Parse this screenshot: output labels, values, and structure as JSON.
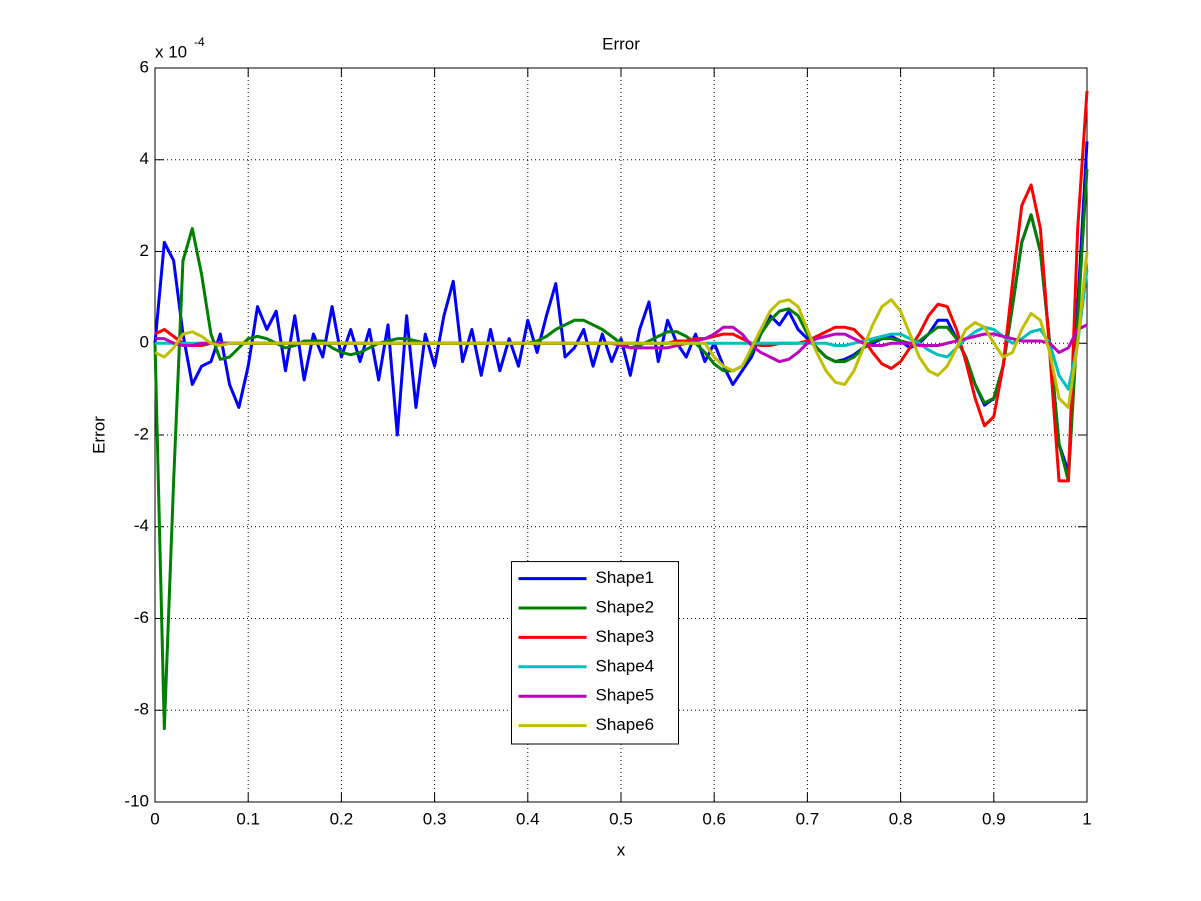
{
  "chart_data": {
    "type": "line",
    "title": "Error",
    "xlabel": "x",
    "ylabel": "Error",
    "y_multiplier": "x 10",
    "y_multiplier_exponent": "-4",
    "xlim": [
      0,
      1
    ],
    "ylim": [
      -10,
      6
    ],
    "xticks": [
      0,
      0.1,
      0.2,
      0.3,
      0.4,
      0.5,
      0.6,
      0.7,
      0.8,
      0.9,
      1
    ],
    "yticks": [
      -10,
      -8,
      -6,
      -4,
      -2,
      0,
      2,
      4,
      6
    ],
    "grid": true,
    "legend_location": "south",
    "x": [
      0,
      0.01,
      0.02,
      0.03,
      0.04,
      0.05,
      0.06,
      0.07,
      0.08,
      0.09,
      0.1,
      0.11,
      0.12,
      0.13,
      0.14,
      0.15,
      0.16,
      0.17,
      0.18,
      0.19,
      0.2,
      0.21,
      0.22,
      0.23,
      0.24,
      0.25,
      0.26,
      0.27,
      0.28,
      0.29,
      0.3,
      0.31,
      0.32,
      0.33,
      0.34,
      0.35,
      0.36,
      0.37,
      0.38,
      0.39,
      0.4,
      0.41,
      0.42,
      0.43,
      0.44,
      0.45,
      0.46,
      0.47,
      0.48,
      0.49,
      0.5,
      0.51,
      0.52,
      0.53,
      0.54,
      0.55,
      0.56,
      0.57,
      0.58,
      0.59,
      0.6,
      0.61,
      0.62,
      0.63,
      0.64,
      0.65,
      0.66,
      0.67,
      0.68,
      0.69,
      0.7,
      0.71,
      0.72,
      0.73,
      0.74,
      0.75,
      0.76,
      0.77,
      0.78,
      0.79,
      0.8,
      0.81,
      0.82,
      0.83,
      0.84,
      0.85,
      0.86,
      0.87,
      0.88,
      0.89,
      0.9,
      0.91,
      0.92,
      0.93,
      0.94,
      0.95,
      0.96,
      0.97,
      0.98,
      0.99,
      1
    ],
    "series": [
      {
        "name": "Shape1",
        "color": "#0000ff",
        "values": [
          0,
          2.2,
          1.8,
          0.2,
          -0.9,
          -0.5,
          -0.4,
          0.2,
          -0.9,
          -1.4,
          -0.5,
          0.8,
          0.3,
          0.7,
          -0.6,
          0.6,
          -0.8,
          0.2,
          -0.3,
          0.8,
          -0.3,
          0.3,
          -0.4,
          0.3,
          -0.8,
          0.4,
          -2.0,
          0.6,
          -1.4,
          0.2,
          -0.5,
          0.6,
          1.35,
          -0.4,
          0.3,
          -0.7,
          0.3,
          -0.6,
          0.1,
          -0.5,
          0.5,
          -0.2,
          0.6,
          1.3,
          -0.3,
          -0.1,
          0.3,
          -0.5,
          0.2,
          -0.4,
          0.1,
          -0.7,
          0.3,
          0.9,
          -0.4,
          0.5,
          0,
          -0.3,
          0.2,
          -0.4,
          0,
          -0.5,
          -0.9,
          -0.6,
          -0.3,
          0.2,
          0.6,
          0.4,
          0.7,
          0.3,
          0.1,
          -0.1,
          -0.3,
          -0.4,
          -0.35,
          -0.25,
          -0.1,
          0,
          0.1,
          0.15,
          0.05,
          -0.1,
          0,
          0.2,
          0.5,
          0.5,
          0.1,
          -0.3,
          -0.9,
          -1.35,
          -1.2,
          -0.5,
          0.8,
          2.2,
          2.8,
          2.0,
          0,
          -2.2,
          -2.8,
          0.8,
          4.4
        ]
      },
      {
        "name": "Shape2",
        "color": "#008000",
        "values": [
          0,
          -8.4,
          -3,
          1.8,
          2.5,
          1.5,
          0.2,
          -0.35,
          -0.3,
          -0.1,
          0.1,
          0.15,
          0.1,
          0,
          -0.1,
          -0.05,
          0.05,
          0.05,
          0.05,
          -0.1,
          -0.2,
          -0.25,
          -0.2,
          -0.1,
          0,
          0.05,
          0.1,
          0.1,
          0.05,
          0,
          0,
          0,
          0,
          0,
          0,
          0,
          0,
          0,
          0,
          0,
          0,
          0.05,
          0.15,
          0.3,
          0.4,
          0.5,
          0.5,
          0.4,
          0.3,
          0.15,
          0,
          -0.1,
          -0.05,
          0.05,
          0.15,
          0.25,
          0.25,
          0.15,
          0,
          -0.2,
          -0.45,
          -0.6,
          -0.6,
          -0.5,
          -0.2,
          0.2,
          0.5,
          0.7,
          0.75,
          0.6,
          0.2,
          -0.1,
          -0.3,
          -0.4,
          -0.4,
          -0.3,
          -0.1,
          0.05,
          0.1,
          0.1,
          0.05,
          0,
          0.05,
          0.2,
          0.35,
          0.35,
          0.1,
          -0.3,
          -0.9,
          -1.3,
          -1.2,
          -0.5,
          0.8,
          2.2,
          2.8,
          2.0,
          0,
          -2.2,
          -3.0,
          0.5,
          3.8
        ]
      },
      {
        "name": "Shape3",
        "color": "#ff0000",
        "values": [
          0.2,
          0.3,
          0.15,
          0,
          -0.05,
          -0.05,
          0,
          0,
          0,
          0,
          0,
          0,
          0,
          0,
          0,
          0,
          0,
          0,
          0,
          0,
          0,
          0,
          0,
          0,
          0,
          0,
          0,
          0,
          0,
          0,
          0,
          0,
          0,
          0,
          0,
          0,
          0,
          0,
          0,
          0,
          0,
          0,
          0,
          0,
          0,
          0,
          0,
          0,
          0,
          0,
          0,
          0,
          0,
          0,
          0,
          0,
          0.05,
          0.05,
          0.1,
          0.1,
          0.15,
          0.2,
          0.2,
          0.1,
          0,
          -0.05,
          -0.05,
          0,
          0,
          0,
          0.05,
          0.15,
          0.25,
          0.35,
          0.35,
          0.3,
          0.1,
          -0.2,
          -0.45,
          -0.55,
          -0.4,
          -0.1,
          0.2,
          0.6,
          0.85,
          0.8,
          0.3,
          -0.4,
          -1.2,
          -1.8,
          -1.6,
          -0.5,
          1.3,
          3.0,
          3.45,
          2.5,
          -0.2,
          -3.0,
          -3.0,
          2.5,
          5.5
        ]
      },
      {
        "name": "Shape4",
        "color": "#00bfbf",
        "values": [
          0,
          0,
          0,
          0,
          0,
          0,
          0,
          0,
          0,
          0,
          0,
          0,
          0,
          0,
          0,
          0,
          0,
          0,
          0,
          0,
          0,
          0,
          0,
          0,
          0,
          0,
          0,
          0,
          0,
          0,
          0,
          0,
          0,
          0,
          0,
          0,
          0,
          0,
          0,
          0,
          0,
          0,
          0,
          0,
          0,
          0,
          0,
          0,
          0,
          0,
          0,
          0,
          0,
          0,
          0,
          0,
          0,
          0,
          0,
          0,
          0,
          0,
          0,
          0,
          0,
          0,
          0,
          0,
          0,
          0,
          0,
          0,
          0,
          -0.05,
          -0.05,
          0,
          0.05,
          0.1,
          0.15,
          0.2,
          0.2,
          0.1,
          0,
          -0.15,
          -0.25,
          -0.3,
          -0.1,
          0.1,
          0.25,
          0.35,
          0.3,
          0.15,
          0,
          0.1,
          0.25,
          0.3,
          0,
          -0.7,
          -1.0,
          0,
          1.6
        ]
      },
      {
        "name": "Shape5",
        "color": "#bf00bf",
        "values": [
          0.1,
          0.1,
          0,
          -0.05,
          -0.05,
          0,
          0,
          0,
          0,
          0,
          0,
          0,
          0,
          0,
          0,
          0,
          0,
          0,
          0,
          0,
          0,
          0,
          0,
          0,
          0,
          0,
          0,
          0,
          0,
          0,
          0,
          0,
          0,
          0,
          0,
          0,
          0,
          0,
          0,
          0,
          0,
          0,
          0,
          0,
          0,
          0,
          0,
          0,
          0,
          0,
          -0.05,
          -0.1,
          -0.1,
          -0.1,
          -0.1,
          -0.1,
          -0.05,
          0,
          0.05,
          0.1,
          0.2,
          0.35,
          0.35,
          0.2,
          -0.05,
          -0.2,
          -0.3,
          -0.4,
          -0.35,
          -0.2,
          0,
          0.1,
          0.15,
          0.2,
          0.2,
          0.1,
          0,
          -0.05,
          -0.05,
          0,
          0,
          0,
          -0.05,
          -0.05,
          -0.05,
          0,
          0.05,
          0.1,
          0.15,
          0.2,
          0.2,
          0.15,
          0.1,
          0.05,
          0.05,
          0.05,
          0,
          -0.2,
          -0.1,
          0.3,
          0.4
        ]
      },
      {
        "name": "Shape6",
        "color": "#bfbf00",
        "values": [
          -0.2,
          -0.3,
          -0.1,
          0.2,
          0.25,
          0.15,
          0,
          -0.05,
          0,
          0,
          0,
          0,
          0,
          0,
          0,
          0,
          0,
          0,
          0,
          0,
          0,
          0,
          0,
          0,
          0,
          0,
          0,
          0,
          0,
          0,
          0,
          0,
          0,
          0,
          0,
          0,
          0,
          0,
          0,
          0,
          0,
          0,
          0,
          0,
          0,
          0,
          0,
          0,
          0,
          0,
          0,
          0,
          0,
          0,
          0,
          0,
          0,
          0,
          0,
          0,
          -0.3,
          -0.5,
          -0.6,
          -0.5,
          -0.1,
          0.3,
          0.7,
          0.9,
          0.95,
          0.8,
          0.3,
          -0.2,
          -0.6,
          -0.85,
          -0.9,
          -0.6,
          -0.1,
          0.4,
          0.8,
          0.95,
          0.7,
          0.2,
          -0.3,
          -0.6,
          -0.7,
          -0.5,
          -0.1,
          0.3,
          0.45,
          0.35,
          0,
          -0.3,
          -0.2,
          0.3,
          0.65,
          0.5,
          -0.2,
          -1.2,
          -1.4,
          0,
          2.0
        ]
      }
    ]
  }
}
